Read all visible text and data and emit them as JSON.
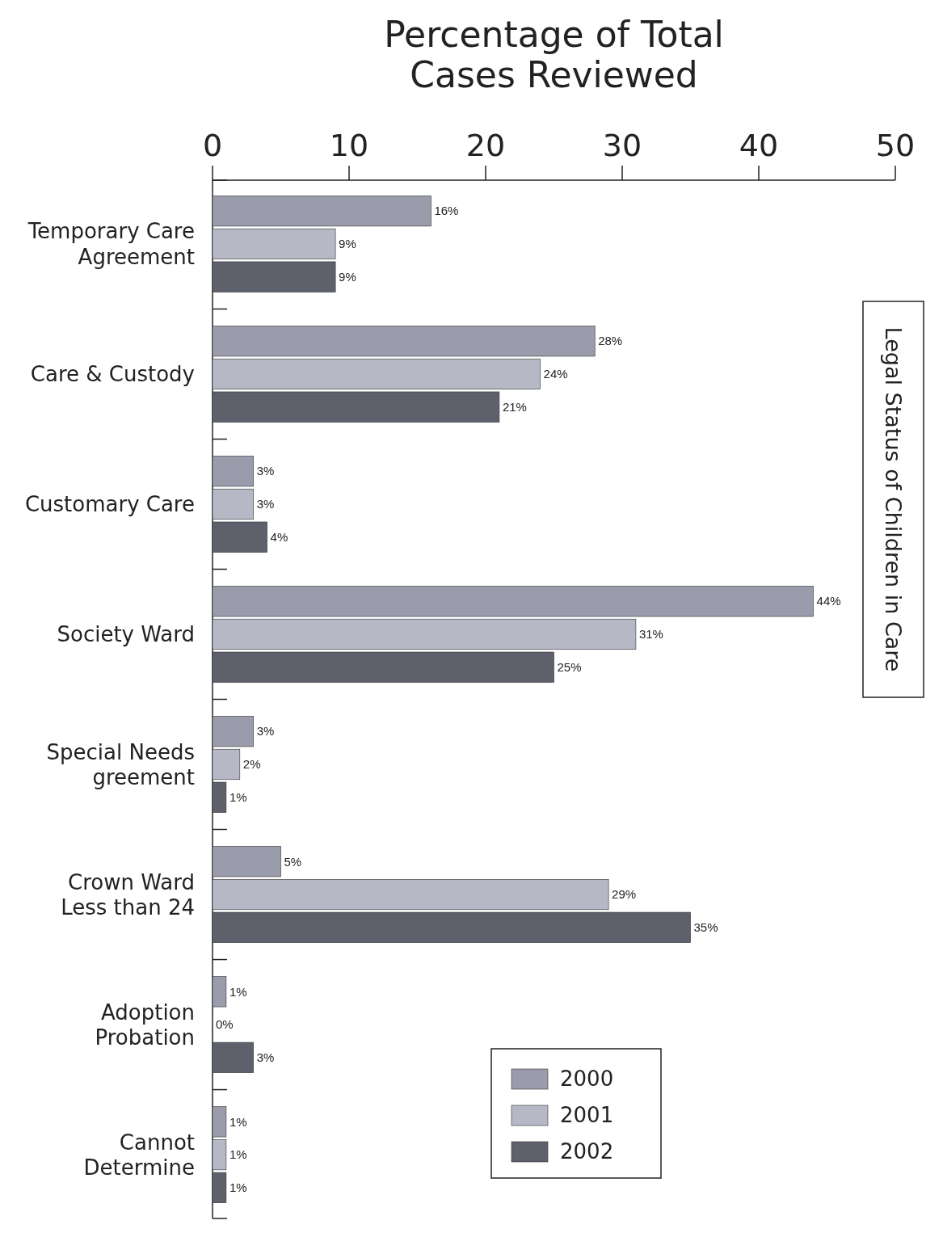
{
  "chart_data": {
    "type": "bar",
    "orientation": "horizontal",
    "title": "Legal Status of Children in Care",
    "xlabel": "Percentage of Total Cases Reviewed",
    "categories": [
      "Temporary Care Agreement",
      "Care & Custody",
      "Customary Care",
      "Society Ward",
      "Special Needs greement",
      "Crown Ward Less than 24",
      "Adoption Probation",
      "Cannot Determine"
    ],
    "series": [
      {
        "name": "2000",
        "color": "#9a9cab",
        "values": [
          16,
          28,
          3,
          44,
          3,
          5,
          1,
          1
        ],
        "value_labels": [
          "16%",
          "28%",
          "3%",
          "44%",
          "3%",
          "5%",
          "1%",
          "1%"
        ]
      },
      {
        "name": "2001",
        "color": "#b6b8c6",
        "values": [
          9,
          24,
          3,
          31,
          2,
          29,
          0,
          1
        ],
        "value_labels": [
          "9%",
          "24%",
          "3%",
          "31%",
          "2%",
          "29%",
          "0%",
          "1%"
        ]
      },
      {
        "name": "2002",
        "color": "#5e606c",
        "values": [
          9,
          21,
          4,
          25,
          1,
          35,
          3,
          1
        ],
        "value_labels": [
          "9%",
          "21%",
          "4%",
          "25%",
          "1%",
          "35%",
          "3%",
          "1%"
        ]
      }
    ],
    "xlim": [
      0,
      50
    ],
    "xticks": [
      0,
      10,
      20,
      30,
      40,
      50
    ],
    "legend": "bottom right",
    "grid": false
  }
}
